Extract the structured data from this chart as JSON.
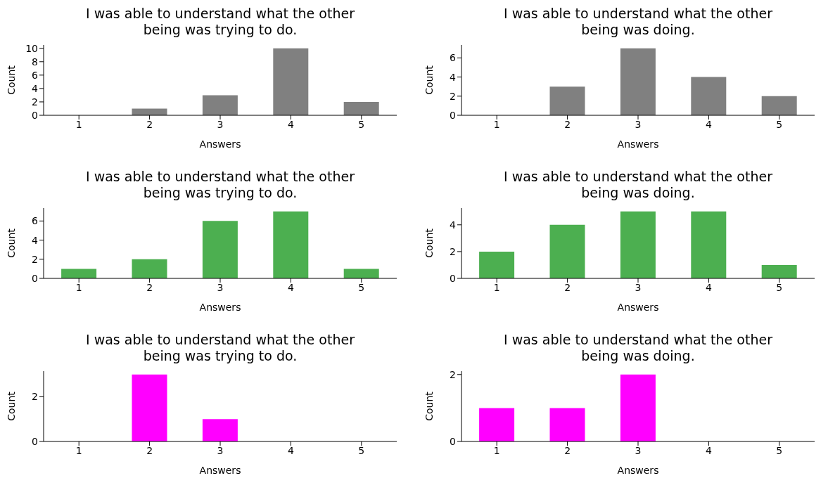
{
  "chart_data": [
    {
      "type": "bar",
      "title": "I was able to understand what the other\nbeing was trying to do.",
      "xlabel": "Answers",
      "ylabel": "Count",
      "categories": [
        "1",
        "2",
        "3",
        "4",
        "5"
      ],
      "values": [
        0,
        1,
        3,
        10,
        2
      ],
      "color": "#808080",
      "ylim": [
        0,
        10.5
      ],
      "yticks": [
        0,
        2,
        4,
        6,
        8,
        10
      ]
    },
    {
      "type": "bar",
      "title": "I was able to understand what the other\nbeing was doing.",
      "xlabel": "Answers",
      "ylabel": "Count",
      "categories": [
        "1",
        "2",
        "3",
        "4",
        "5"
      ],
      "values": [
        0,
        3,
        7,
        4,
        2
      ],
      "color": "#808080",
      "ylim": [
        0,
        7.35
      ],
      "yticks": [
        0,
        2,
        4,
        6
      ]
    },
    {
      "type": "bar",
      "title": "I was able to understand what the other\nbeing was trying to do.",
      "xlabel": "Answers",
      "ylabel": "Count",
      "categories": [
        "1",
        "2",
        "3",
        "4",
        "5"
      ],
      "values": [
        1,
        2,
        6,
        7,
        1
      ],
      "color": "#4caf50",
      "ylim": [
        0,
        7.35
      ],
      "yticks": [
        0,
        2,
        4,
        6
      ]
    },
    {
      "type": "bar",
      "title": "I was able to understand what the other\nbeing was doing.",
      "xlabel": "Answers",
      "ylabel": "Count",
      "categories": [
        "1",
        "2",
        "3",
        "4",
        "5"
      ],
      "values": [
        2,
        4,
        5,
        5,
        1
      ],
      "color": "#4caf50",
      "ylim": [
        0,
        5.25
      ],
      "yticks": [
        0,
        2,
        4
      ]
    },
    {
      "type": "bar",
      "title": "I was able to understand what the other\nbeing was trying to do.",
      "xlabel": "Answers",
      "ylabel": "Count",
      "categories": [
        "1",
        "2",
        "3",
        "4",
        "5"
      ],
      "values": [
        0,
        3,
        1,
        0,
        0
      ],
      "color": "#ff00ff",
      "ylim": [
        0,
        3.15
      ],
      "yticks": [
        0,
        2
      ]
    },
    {
      "type": "bar",
      "title": "I was able to understand what the other\nbeing was doing.",
      "xlabel": "Answers",
      "ylabel": "Count",
      "categories": [
        "1",
        "2",
        "3",
        "4",
        "5"
      ],
      "values": [
        1,
        1,
        2,
        0,
        0
      ],
      "color": "#ff00ff",
      "ylim": [
        0,
        2.1
      ],
      "yticks": [
        0,
        2
      ]
    }
  ]
}
